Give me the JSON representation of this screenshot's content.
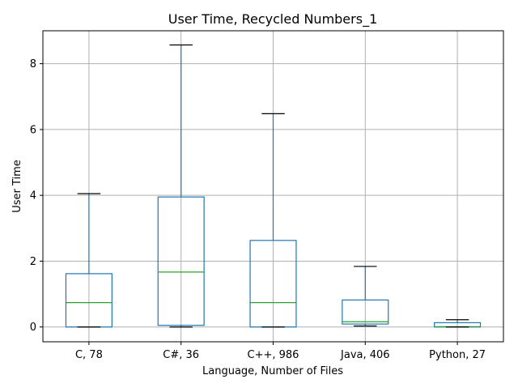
{
  "chart_data": {
    "type": "box",
    "title": "User Time, Recycled Numbers_1",
    "xlabel": "Language, Number of Files",
    "ylabel": "User Time",
    "ylim": [
      -0.45,
      9.0
    ],
    "yticks": [
      0,
      2,
      4,
      6,
      8
    ],
    "grid": true,
    "categories": [
      "C, 78",
      "C#, 36",
      "C++, 986",
      "Java, 406",
      "Python, 27"
    ],
    "boxes": [
      {
        "whislo": 0.0,
        "q1": 0.0,
        "med": 0.74,
        "q3": 1.62,
        "whishi": 4.05
      },
      {
        "whislo": 0.0,
        "q1": 0.05,
        "med": 1.67,
        "q3": 3.95,
        "whishi": 8.57
      },
      {
        "whislo": 0.0,
        "q1": 0.0,
        "med": 0.74,
        "q3": 2.63,
        "whishi": 6.48
      },
      {
        "whislo": 0.03,
        "q1": 0.09,
        "med": 0.16,
        "q3": 0.82,
        "whishi": 1.84
      },
      {
        "whislo": 0.0,
        "q1": 0.0,
        "med": 0.01,
        "q3": 0.13,
        "whishi": 0.22
      }
    ],
    "colors": {
      "box": "#1f77b4",
      "median": "#2ca02c",
      "cap": "#000000",
      "grid": "#b0b0b0"
    }
  }
}
